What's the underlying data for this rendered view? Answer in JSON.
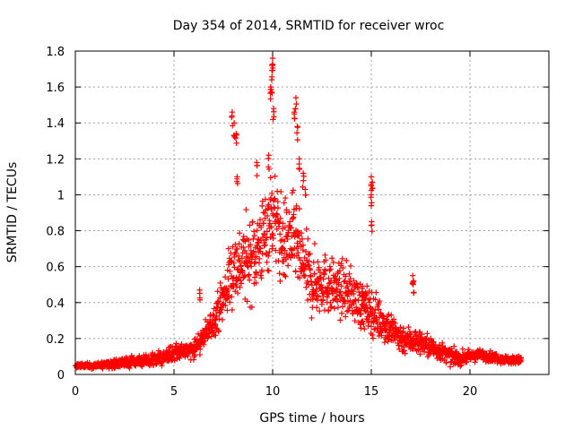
{
  "chart_data": {
    "type": "scatter",
    "title": "Day 354 of 2014, SRMTID for receiver wroc",
    "xlabel": "GPS time / hours",
    "ylabel": "SRMTID / TECUs",
    "xlim": [
      0,
      24
    ],
    "ylim": [
      0,
      1.8
    ],
    "grid": true,
    "marker": "plus",
    "marker_color": "#ff0000",
    "x_ticks": [
      0,
      5,
      10,
      15,
      20
    ],
    "y_ticks": [
      0,
      0.2,
      0.4,
      0.6,
      0.8,
      1,
      1.2,
      1.4,
      1.6,
      1.8
    ],
    "x_tick_labels": [
      "0",
      "5",
      "10",
      "15",
      "20"
    ],
    "y_tick_labels": [
      "0",
      "0.2",
      "0.4",
      "0.6",
      "0.8",
      "1",
      "1.2",
      "1.4",
      "1.6",
      "1.8"
    ],
    "series": [
      {
        "name": "SRMTID",
        "envelope": {
          "x": [
            0,
            1,
            2,
            3,
            4,
            4.5,
            5,
            5.5,
            6,
            6.5,
            7,
            7.5,
            8,
            8.5,
            9,
            9.5,
            10,
            10.5,
            11,
            11.5,
            12,
            12.5,
            13,
            13.5,
            14,
            14.5,
            15,
            15.5,
            16,
            16.5,
            17,
            17.5,
            18,
            18.5,
            19,
            19.5,
            20,
            20.5,
            21,
            21.5,
            22,
            22.6
          ],
          "y": [
            0.05,
            0.05,
            0.06,
            0.07,
            0.08,
            0.1,
            0.12,
            0.13,
            0.15,
            0.2,
            0.3,
            0.42,
            0.6,
            0.62,
            0.66,
            0.75,
            0.9,
            0.72,
            0.78,
            0.62,
            0.5,
            0.52,
            0.48,
            0.47,
            0.45,
            0.38,
            0.35,
            0.3,
            0.25,
            0.2,
            0.19,
            0.18,
            0.15,
            0.13,
            0.1,
            0.09,
            0.1,
            0.11,
            0.1,
            0.09,
            0.08,
            0.08
          ]
        },
        "spread": {
          "x": [
            0,
            5,
            7,
            8,
            9,
            10,
            11,
            12,
            13,
            15,
            17,
            20,
            22.6
          ],
          "y": [
            0.01,
            0.04,
            0.08,
            0.2,
            0.22,
            0.25,
            0.22,
            0.18,
            0.15,
            0.12,
            0.07,
            0.03,
            0.02
          ]
        },
        "peaks": [
          {
            "x": 7.95,
            "y": 1.46
          },
          {
            "x": 8.05,
            "y": 1.4
          },
          {
            "x": 8.15,
            "y": 1.34
          },
          {
            "x": 8.2,
            "y": 1.1
          },
          {
            "x": 9.2,
            "y": 1.18
          },
          {
            "x": 9.8,
            "y": 1.22
          },
          {
            "x": 9.9,
            "y": 1.6
          },
          {
            "x": 9.95,
            "y": 1.64
          },
          {
            "x": 10.0,
            "y": 1.76
          },
          {
            "x": 9.97,
            "y": 1.72
          },
          {
            "x": 10.05,
            "y": 1.48
          },
          {
            "x": 11.1,
            "y": 1.46
          },
          {
            "x": 11.18,
            "y": 1.54
          },
          {
            "x": 11.25,
            "y": 1.38
          },
          {
            "x": 11.35,
            "y": 1.2
          },
          {
            "x": 11.55,
            "y": 1.12
          },
          {
            "x": 11.65,
            "y": 1.03
          },
          {
            "x": 14.55,
            "y": 0.46
          },
          {
            "x": 14.6,
            "y": 0.43
          },
          {
            "x": 15.0,
            "y": 1.1
          },
          {
            "x": 15.05,
            "y": 1.07
          },
          {
            "x": 15.0,
            "y": 1.0
          },
          {
            "x": 15.02,
            "y": 0.85
          },
          {
            "x": 17.1,
            "y": 0.55
          },
          {
            "x": 17.15,
            "y": 0.52
          },
          {
            "x": 6.3,
            "y": 0.47
          }
        ]
      }
    ]
  }
}
